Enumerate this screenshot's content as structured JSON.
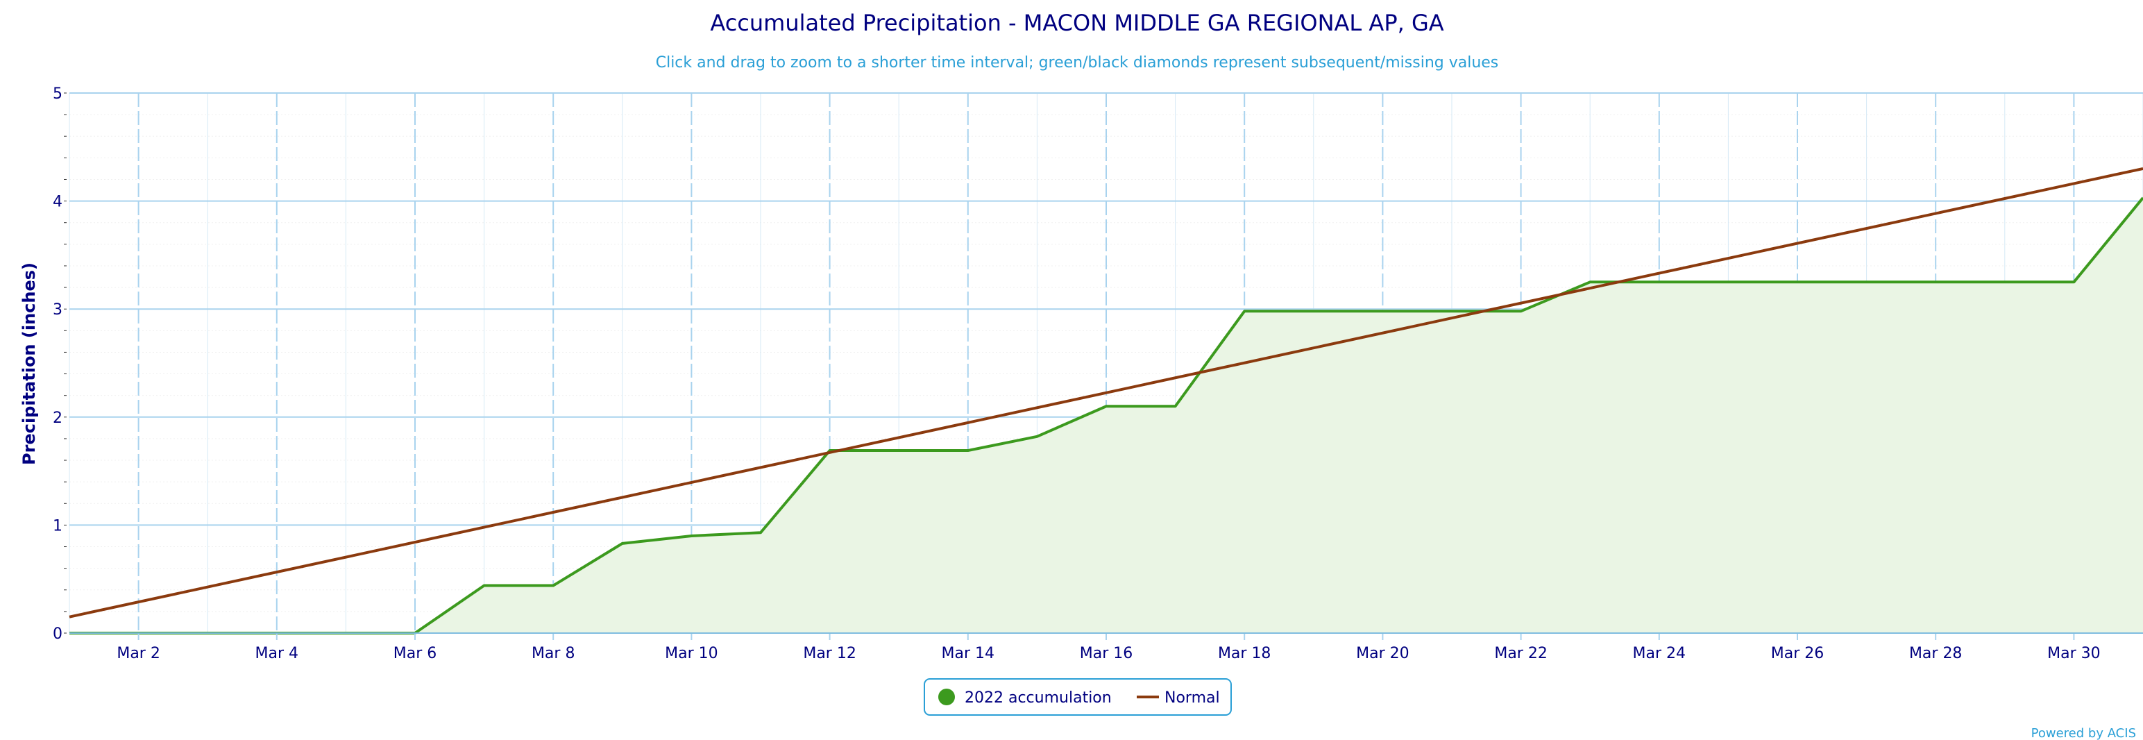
{
  "chart_data": {
    "type": "line",
    "title": "Accumulated Precipitation - MACON MIDDLE GA REGIONAL AP, GA",
    "subtitle": "Click and drag to zoom to a shorter time interval; green/black diamonds represent subsequent/missing values",
    "ylabel": "Precipitation (inches)",
    "xlabel": "",
    "ylim": [
      0,
      5
    ],
    "y_ticks": [
      0,
      1,
      2,
      3,
      4,
      5
    ],
    "x_days": [
      1,
      31
    ],
    "x_ticks": [
      {
        "day": 2,
        "label": "Mar 2"
      },
      {
        "day": 4,
        "label": "Mar 4"
      },
      {
        "day": 6,
        "label": "Mar 6"
      },
      {
        "day": 8,
        "label": "Mar 8"
      },
      {
        "day": 10,
        "label": "Mar 10"
      },
      {
        "day": 12,
        "label": "Mar 12"
      },
      {
        "day": 14,
        "label": "Mar 14"
      },
      {
        "day": 16,
        "label": "Mar 16"
      },
      {
        "day": 18,
        "label": "Mar 18"
      },
      {
        "day": 20,
        "label": "Mar 20"
      },
      {
        "day": 22,
        "label": "Mar 22"
      },
      {
        "day": 24,
        "label": "Mar 24"
      },
      {
        "day": 26,
        "label": "Mar 26"
      },
      {
        "day": 28,
        "label": "Mar 28"
      },
      {
        "day": 30,
        "label": "Mar 30"
      }
    ],
    "grid": true,
    "legend_position": "bottom-center",
    "series": [
      {
        "name": "2022 accumulation",
        "color": "#3c9a1e",
        "fill": "#eaf5e4",
        "x": [
          1,
          2,
          3,
          4,
          5,
          6,
          7,
          8,
          9,
          10,
          11,
          12,
          13,
          14,
          15,
          16,
          17,
          18,
          19,
          20,
          21,
          22,
          23,
          24,
          25,
          26,
          27,
          28,
          29,
          30,
          31
        ],
        "values": [
          0,
          0,
          0,
          0,
          0,
          0,
          0.44,
          0.44,
          0.83,
          0.9,
          0.93,
          1.69,
          1.69,
          1.69,
          1.82,
          2.1,
          2.1,
          2.98,
          2.98,
          2.98,
          2.98,
          2.98,
          3.25,
          3.25,
          3.25,
          3.25,
          3.25,
          3.25,
          3.25,
          3.25,
          4.03
        ]
      },
      {
        "name": "Normal",
        "color": "#8b3a0e",
        "x": [
          1,
          31
        ],
        "values": [
          0.15,
          4.3
        ]
      }
    ]
  },
  "credit": "Powered by ACIS"
}
